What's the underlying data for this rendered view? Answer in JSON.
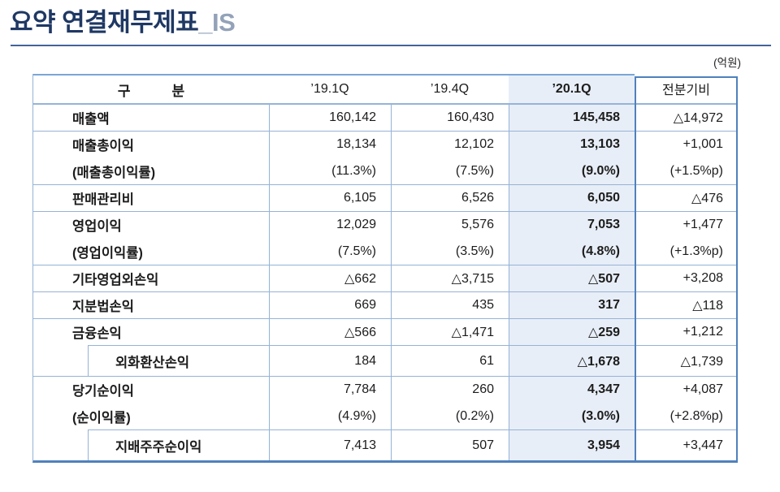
{
  "title": {
    "main": "요약 연결재무제표",
    "suffix": "_IS"
  },
  "unit_label": "(억원)",
  "colors": {
    "title_navy": "#1f3864",
    "title_suffix_gray": "#93a2b8",
    "grid_line_blue": "#95b3d7",
    "strong_border_blue": "#4f81bd",
    "highlight_column_bg": "#e8eef7"
  },
  "table": {
    "header": {
      "category": "구　　　분",
      "cols": [
        "’19.1Q",
        "’19.4Q",
        "’20.1Q",
        "전분기비"
      ]
    },
    "highlight_column": "’20.1Q",
    "rows": [
      {
        "type": "single",
        "label": "매출액",
        "values": [
          "160,142",
          "160,430",
          "145,458",
          "△14,972"
        ]
      },
      {
        "type": "double",
        "label": "매출총이익",
        "values": [
          "18,134",
          "12,102",
          "13,103",
          "+1,001"
        ],
        "rate_label": "(매출총이익률)",
        "rate_values": [
          "(11.3%)",
          "(7.5%)",
          "(9.0%)",
          "(+1.5%p)"
        ]
      },
      {
        "type": "single",
        "label": "판매관리비",
        "values": [
          "6,105",
          "6,526",
          "6,050",
          "△476"
        ]
      },
      {
        "type": "double",
        "label": "영업이익",
        "values": [
          "12,029",
          "5,576",
          "7,053",
          "+1,477"
        ],
        "rate_label": "(영업이익률)",
        "rate_values": [
          "(7.5%)",
          "(3.5%)",
          "(4.8%)",
          "(+1.3%p)"
        ]
      },
      {
        "type": "single",
        "label": "기타영업외손익",
        "values": [
          "△662",
          "△3,715",
          "△507",
          "+3,208"
        ]
      },
      {
        "type": "single",
        "label": "지분법손익",
        "values": [
          "669",
          "435",
          "317",
          "△118"
        ]
      },
      {
        "type": "single",
        "label": "금융손익",
        "values": [
          "△566",
          "△1,471",
          "△259",
          "+1,212"
        ]
      },
      {
        "type": "sub",
        "label": "외화환산손익",
        "values": [
          "184",
          "61",
          "△1,678",
          "△1,739"
        ]
      },
      {
        "type": "double",
        "label": "당기순이익",
        "values": [
          "7,784",
          "260",
          "4,347",
          "+4,087"
        ],
        "rate_label": "(순이익률)",
        "rate_values": [
          "(4.9%)",
          "(0.2%)",
          "(3.0%)",
          "(+2.8%p)"
        ]
      },
      {
        "type": "sub",
        "label": "지배주주순이익",
        "values": [
          "7,413",
          "507",
          "3,954",
          "+3,447"
        ]
      }
    ]
  }
}
